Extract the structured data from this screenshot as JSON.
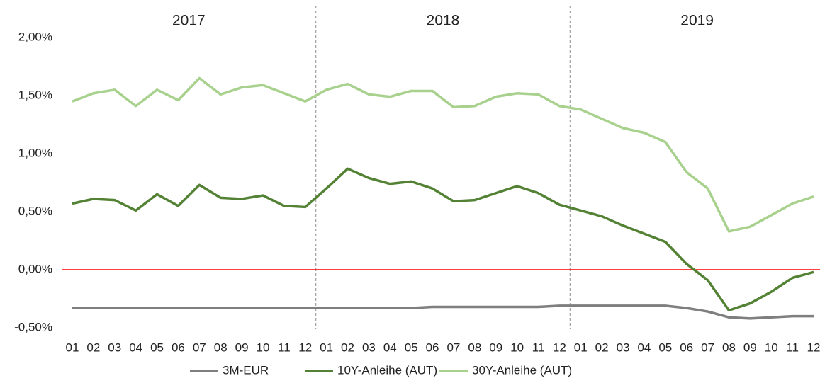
{
  "chart_data": {
    "type": "line",
    "years": [
      "2017",
      "2018",
      "2019"
    ],
    "categories": [
      "01",
      "02",
      "03",
      "04",
      "05",
      "06",
      "07",
      "08",
      "09",
      "10",
      "11",
      "12",
      "01",
      "02",
      "03",
      "04",
      "05",
      "06",
      "07",
      "08",
      "09",
      "10",
      "11",
      "12",
      "01",
      "02",
      "03",
      "04",
      "05",
      "06",
      "07",
      "08",
      "09",
      "10",
      "11",
      "12"
    ],
    "series": [
      {
        "name": "3M-EUR",
        "color": "#7f7f7f",
        "values": [
          -0.33,
          -0.33,
          -0.33,
          -0.33,
          -0.33,
          -0.33,
          -0.33,
          -0.33,
          -0.33,
          -0.33,
          -0.33,
          -0.33,
          -0.33,
          -0.33,
          -0.33,
          -0.33,
          -0.33,
          -0.32,
          -0.32,
          -0.32,
          -0.32,
          -0.32,
          -0.32,
          -0.31,
          -0.31,
          -0.31,
          -0.31,
          -0.31,
          -0.31,
          -0.33,
          -0.36,
          -0.41,
          -0.42,
          -0.41,
          -0.4,
          -0.4
        ]
      },
      {
        "name": "10Y-Anleihe (AUT)",
        "color": "#548235",
        "values": [
          0.57,
          0.61,
          0.6,
          0.51,
          0.65,
          0.55,
          0.73,
          0.62,
          0.61,
          0.64,
          0.55,
          0.54,
          0.7,
          0.87,
          0.79,
          0.74,
          0.76,
          0.7,
          0.59,
          0.6,
          0.66,
          0.72,
          0.66,
          0.56,
          0.51,
          0.46,
          0.38,
          0.31,
          0.24,
          0.05,
          -0.09,
          -0.35,
          -0.29,
          -0.19,
          -0.07,
          -0.02
        ]
      },
      {
        "name": "30Y-Anleihe (AUT)",
        "color": "#a9d18e",
        "values": [
          1.45,
          1.52,
          1.55,
          1.41,
          1.55,
          1.46,
          1.65,
          1.51,
          1.57,
          1.59,
          1.52,
          1.45,
          1.55,
          1.6,
          1.51,
          1.49,
          1.54,
          1.54,
          1.4,
          1.41,
          1.49,
          1.52,
          1.51,
          1.41,
          1.38,
          1.3,
          1.22,
          1.18,
          1.1,
          0.84,
          0.7,
          0.33,
          0.37,
          0.47,
          0.57,
          0.63
        ]
      }
    ],
    "ylim": [
      -0.5,
      2.0
    ],
    "yticks": [
      {
        "value": -0.5,
        "label": "-0,50%"
      },
      {
        "value": 0,
        "label": "0,00%"
      },
      {
        "value": 0.5,
        "label": "0,50%"
      },
      {
        "value": 1.0,
        "label": "1,00%"
      },
      {
        "value": 1.5,
        "label": "1,50%"
      },
      {
        "value": 2.0,
        "label": "2,00%"
      }
    ],
    "reference_line": 0,
    "reference_color": "#ff0000",
    "legend": "bottom"
  }
}
